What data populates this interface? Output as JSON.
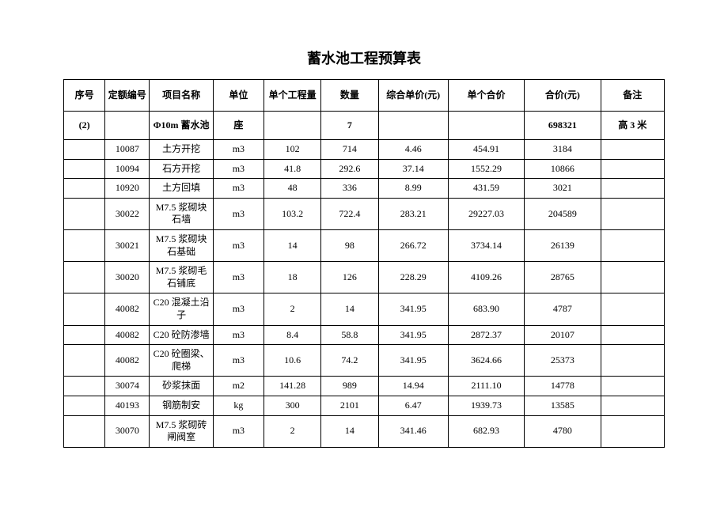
{
  "title": "蓄水池工程预算表",
  "headers": {
    "seq": "序号",
    "code": "定额编号",
    "name": "项目名称",
    "unit": "单位",
    "qty1": "单个工程量",
    "qty2": "数量",
    "price1": "综合单价(元)",
    "price2": "单个合价",
    "total": "合价(元)",
    "note": "备注"
  },
  "section": {
    "seq": "(2)",
    "code": "",
    "name": "Φ10m 蓄水池",
    "unit": "座",
    "qty1": "",
    "qty2": "7",
    "price1": "",
    "price2": "",
    "total": "698321",
    "note": "高 3 米"
  },
  "rows": [
    {
      "seq": "",
      "code": "10087",
      "name": "土方开挖",
      "unit": "m3",
      "qty1": "102",
      "qty2": "714",
      "price1": "4.46",
      "price2": "454.91",
      "total": "3184",
      "note": ""
    },
    {
      "seq": "",
      "code": "10094",
      "name": "石方开挖",
      "unit": "m3",
      "qty1": "41.8",
      "qty2": "292.6",
      "price1": "37.14",
      "price2": "1552.29",
      "total": "10866",
      "note": ""
    },
    {
      "seq": "",
      "code": "10920",
      "name": "土方回填",
      "unit": "m3",
      "qty1": "48",
      "qty2": "336",
      "price1": "8.99",
      "price2": "431.59",
      "total": "3021",
      "note": ""
    },
    {
      "seq": "",
      "code": "30022",
      "name": "M7.5 浆砌块石墙",
      "unit": "m3",
      "qty1": "103.2",
      "qty2": "722.4",
      "price1": "283.21",
      "price2": "29227.03",
      "total": "204589",
      "note": ""
    },
    {
      "seq": "",
      "code": "30021",
      "name": "M7.5 浆砌块石基础",
      "unit": "m3",
      "qty1": "14",
      "qty2": "98",
      "price1": "266.72",
      "price2": "3734.14",
      "total": "26139",
      "note": ""
    },
    {
      "seq": "",
      "code": "30020",
      "name": "M7.5 浆砌毛石铺底",
      "unit": "m3",
      "qty1": "18",
      "qty2": "126",
      "price1": "228.29",
      "price2": "4109.26",
      "total": "28765",
      "note": ""
    },
    {
      "seq": "",
      "code": "40082",
      "name": "C20 混凝土沿子",
      "unit": "m3",
      "qty1": "2",
      "qty2": "14",
      "price1": "341.95",
      "price2": "683.90",
      "total": "4787",
      "note": ""
    },
    {
      "seq": "",
      "code": "40082",
      "name": "C20 砼防渗墙",
      "unit": "m3",
      "qty1": "8.4",
      "qty2": "58.8",
      "price1": "341.95",
      "price2": "2872.37",
      "total": "20107",
      "note": ""
    },
    {
      "seq": "",
      "code": "40082",
      "name": "C20 砼圈梁、爬梯",
      "unit": "m3",
      "qty1": "10.6",
      "qty2": "74.2",
      "price1": "341.95",
      "price2": "3624.66",
      "total": "25373",
      "note": ""
    },
    {
      "seq": "",
      "code": "30074",
      "name": "砂浆抹面",
      "unit": "m2",
      "qty1": "141.28",
      "qty2": "989",
      "price1": "14.94",
      "price2": "2111.10",
      "total": "14778",
      "note": ""
    },
    {
      "seq": "",
      "code": "40193",
      "name": "钢筋制安",
      "unit": "kg",
      "qty1": "300",
      "qty2": "2101",
      "price1": "6.47",
      "price2": "1939.73",
      "total": "13585",
      "note": ""
    },
    {
      "seq": "",
      "code": "30070",
      "name": "M7.5 浆砌砖闸阀室",
      "unit": "m3",
      "qty1": "2",
      "qty2": "14",
      "price1": "341.46",
      "price2": "682.93",
      "total": "4780",
      "note": ""
    }
  ]
}
